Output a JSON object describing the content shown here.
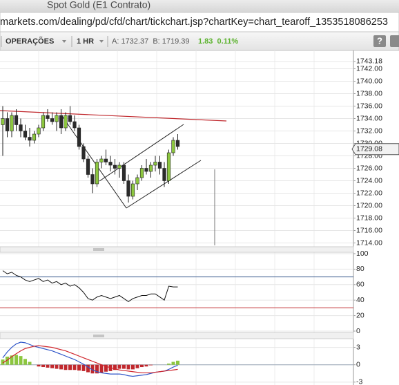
{
  "window": {
    "title": "Spot Gold (E1 Contrato)"
  },
  "url": "markets.com/dealing/pd/cfd/chart/tickchart.jsp?chartKey=chart_tearoff_1353518086253",
  "toolbar": {
    "operations": "OPERAÇÕES",
    "interval": "1 HR",
    "quote": "A: 1732.37  B: 1719.39",
    "change": "1.83  0.11%",
    "help": "?"
  },
  "chart_data": [
    {
      "type": "candlestick",
      "up_color": "#8cc63f",
      "down_color": "#2b2b2b",
      "open": [
        1733,
        1734,
        1732,
        1734.5,
        1733,
        1732,
        1731,
        1730.5,
        1731.5,
        1732.5,
        1734.5,
        1734,
        1733.5,
        1734.5,
        1732.5,
        1734.5,
        1733.5,
        1732.5,
        1729.5,
        1727.5,
        1725,
        1723.5,
        1727,
        1727.5,
        1727,
        1726.5,
        1726,
        1726.5,
        1724,
        1721.5,
        1723.5,
        1724.5,
        1726,
        1725.5,
        1726.5,
        1727,
        1726,
        1724,
        1728.5,
        1730.5
      ],
      "high": [
        1736,
        1735,
        1735,
        1735.5,
        1734,
        1733,
        1732.5,
        1732,
        1733,
        1735,
        1735.5,
        1735,
        1735,
        1735.5,
        1735,
        1736,
        1734.5,
        1733,
        1730,
        1728,
        1726,
        1727.5,
        1728,
        1729,
        1728,
        1727.5,
        1727,
        1727,
        1725,
        1724,
        1725,
        1726.5,
        1727.5,
        1727,
        1728,
        1728,
        1727,
        1729,
        1731,
        1731.5
      ],
      "low": [
        1728,
        1731,
        1731,
        1732,
        1731,
        1730.5,
        1729.5,
        1730,
        1731,
        1732,
        1733.5,
        1733,
        1732,
        1731.5,
        1732,
        1733,
        1732,
        1729,
        1727,
        1724.5,
        1722,
        1723,
        1726,
        1726.5,
        1725.5,
        1725,
        1724.5,
        1723.5,
        1720.5,
        1721,
        1722.5,
        1724,
        1725,
        1724.5,
        1725.5,
        1725,
        1723,
        1723.5,
        1728,
        1729
      ],
      "close": [
        1734,
        1732,
        1734.5,
        1733,
        1732,
        1731,
        1730.5,
        1731.5,
        1732.5,
        1734.5,
        1734,
        1733.5,
        1734.5,
        1732.5,
        1734.5,
        1733.5,
        1732.5,
        1729.5,
        1727.5,
        1725,
        1723.5,
        1727,
        1727.5,
        1727,
        1726.5,
        1726,
        1726.5,
        1724,
        1721.5,
        1723.5,
        1724.5,
        1726,
        1725.5,
        1726.5,
        1727,
        1726,
        1724,
        1728.5,
        1730.5,
        1729.5
      ],
      "last_price": 1729.08,
      "ylim": [
        1713.5,
        1744.5
      ],
      "yticks": [
        1743.18,
        {
          "value": 1742,
          "label": "1742.00"
        },
        {
          "value": 1740,
          "label": "1740.00"
        },
        {
          "value": 1738,
          "label": "1738.00"
        },
        {
          "value": 1736,
          "label": "1736.00"
        },
        {
          "value": 1734,
          "label": "1734.00"
        },
        {
          "value": 1732,
          "label": "1732.00"
        },
        {
          "value": 1730,
          "label": "1730.00"
        },
        {
          "value": 1728,
          "label": "1728.00"
        },
        {
          "value": 1726,
          "label": "1726.00"
        },
        {
          "value": 1724,
          "label": "1724.00"
        },
        {
          "value": 1722,
          "label": "1722.00"
        },
        {
          "value": 1720,
          "label": "1720.00"
        },
        {
          "value": 1718,
          "label": "1718.00"
        },
        {
          "value": 1716,
          "label": "1716.00"
        },
        {
          "value": 1714,
          "label": "1714.00"
        }
      ],
      "grid": true
    },
    {
      "type": "line",
      "color": "#111111",
      "values": [
        78,
        74,
        76,
        72,
        70,
        66,
        64,
        66,
        68,
        64,
        66,
        62,
        64,
        60,
        62,
        58,
        60,
        56,
        50,
        42,
        40,
        44,
        46,
        44,
        42,
        44,
        46,
        42,
        38,
        42,
        44,
        46,
        46,
        48,
        48,
        44,
        40,
        58,
        57,
        57
      ],
      "ylim": [
        0,
        100
      ],
      "yticks": [
        0,
        20,
        40,
        60,
        80,
        100
      ],
      "levels": [
        70,
        30
      ],
      "level_colors": [
        "#3b5d8f",
        "#c0282d"
      ],
      "grid": true
    },
    {
      "type": "macd",
      "series": [
        {
          "color": "#2f55c8",
          "values": [
            1.2,
            2.2,
            3.0,
            3.6,
            3.9,
            3.8,
            3.5,
            3.2,
            3.0,
            2.8,
            2.6,
            2.4,
            2.1,
            1.8,
            1.5,
            1.2,
            0.9,
            0.5,
            0.1,
            -0.4,
            -0.9,
            -1.2,
            -1.4,
            -1.5,
            -1.6,
            -1.6,
            -1.6,
            -1.7,
            -1.9,
            -2.0,
            -1.9,
            -1.8,
            -1.7,
            -1.5,
            -1.3,
            -1.2,
            -1.1,
            -0.8,
            -0.4,
            -0.1
          ]
        },
        {
          "color": "#d0242b",
          "values": [
            0.3,
            0.8,
            1.4,
            1.9,
            2.4,
            2.8,
            3.0,
            3.2,
            3.3,
            3.2,
            3.1,
            3.0,
            2.8,
            2.6,
            2.4,
            2.1,
            1.8,
            1.5,
            1.2,
            0.9,
            0.6,
            0.3,
            0.0,
            -0.3,
            -0.5,
            -0.7,
            -0.9,
            -1.0,
            -1.1,
            -1.2,
            -1.3,
            -1.4,
            -1.4,
            -1.4,
            -1.3,
            -1.2,
            -1.1,
            -1.0,
            -0.9,
            -0.8
          ]
        }
      ],
      "histogram": {
        "up_color": "#8cc63f",
        "down_color": "#c0282d",
        "values": [
          0.9,
          1.4,
          1.6,
          1.7,
          1.5,
          1.0,
          0.5,
          0.0,
          -0.3,
          -0.4,
          -0.5,
          -0.6,
          -0.7,
          -0.8,
          -0.9,
          -0.9,
          -0.9,
          -1.0,
          -1.1,
          -1.3,
          -1.5,
          -1.5,
          -1.4,
          -1.2,
          -1.1,
          -0.9,
          -0.7,
          -0.7,
          -0.8,
          -0.8,
          -0.6,
          -0.4,
          -0.3,
          -0.1,
          0.0,
          0.0,
          0.0,
          0.2,
          0.5,
          0.7
        ]
      },
      "ylim": [
        -3.5,
        4.5
      ],
      "yticks": [
        -3,
        0,
        3
      ],
      "grid": true
    }
  ]
}
